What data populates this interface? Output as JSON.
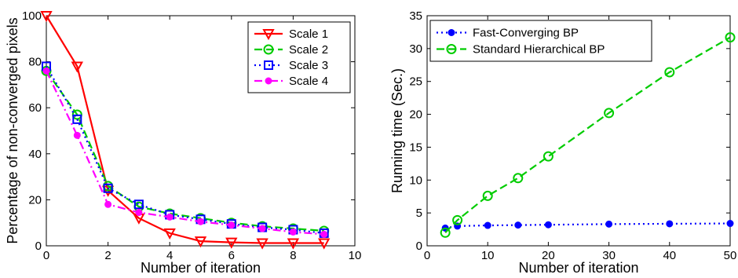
{
  "chart_data": [
    {
      "type": "line",
      "title": "",
      "xlabel": "Number of iteration",
      "ylabel": "Percentage of non-converged pixels",
      "xlim": [
        0,
        10
      ],
      "ylim": [
        0,
        100
      ],
      "xticks": [
        0,
        2,
        4,
        6,
        8,
        10
      ],
      "yticks": [
        0,
        20,
        40,
        60,
        80,
        100
      ],
      "grid": false,
      "legend_position": "top-right",
      "x": [
        0,
        1,
        2,
        3,
        4,
        5,
        6,
        7,
        8,
        9
      ],
      "series": [
        {
          "name": "Scale 1",
          "color": "#ff0000",
          "line": "solid",
          "marker": "triangle-down",
          "values": [
            100,
            78,
            24,
            12,
            5.5,
            2,
            1.5,
            1.2,
            1.2,
            1.2
          ]
        },
        {
          "name": "Scale 2",
          "color": "#00cc00",
          "line": "dashed",
          "marker": "circle",
          "values": [
            76,
            57,
            26,
            17,
            14,
            12,
            10,
            8.5,
            7.5,
            6.5
          ]
        },
        {
          "name": "Scale 3",
          "color": "#0000ff",
          "line": "dotted",
          "marker": "square",
          "values": [
            78,
            55,
            25,
            18,
            13.5,
            11.5,
            9.5,
            8,
            7,
            5.5
          ]
        },
        {
          "name": "Scale 4",
          "color": "#ff00ff",
          "line": "dashdot",
          "marker": "filled-circle",
          "values": [
            76,
            48,
            18,
            14.5,
            12.5,
            10.5,
            9,
            7.5,
            6,
            5
          ]
        }
      ]
    },
    {
      "type": "line",
      "title": "",
      "xlabel": "Number of iteration",
      "ylabel": "Running time (Sec.)",
      "xlim": [
        0,
        50
      ],
      "ylim": [
        0,
        35
      ],
      "xticks": [
        0,
        10,
        20,
        30,
        40,
        50
      ],
      "yticks": [
        0,
        5,
        10,
        15,
        20,
        25,
        30,
        35
      ],
      "grid": false,
      "legend_position": "top-left",
      "x": [
        3,
        5,
        10,
        15,
        20,
        30,
        40,
        50
      ],
      "series": [
        {
          "name": "Fast-Converging BP",
          "color": "#0000ff",
          "line": "dotted",
          "marker": "filled-circle",
          "values": [
            2.7,
            3.0,
            3.1,
            3.15,
            3.2,
            3.3,
            3.35,
            3.4
          ]
        },
        {
          "name": "Standard Hierarchical BP",
          "color": "#00cc00",
          "line": "dashed",
          "marker": "circle",
          "values": [
            2.0,
            3.9,
            7.6,
            10.3,
            13.6,
            20.2,
            26.4,
            31.7
          ]
        }
      ]
    }
  ]
}
